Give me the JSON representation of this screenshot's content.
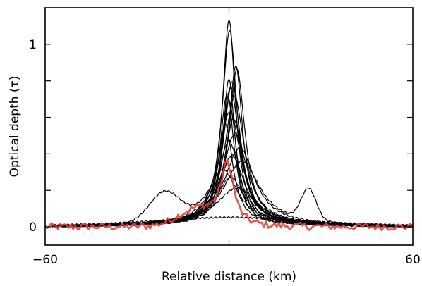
{
  "chart_data": {
    "type": "line",
    "title": "",
    "xlabel": "Relative distance (km)",
    "ylabel": "Optical depth (τ)",
    "xlim": [
      -60,
      60
    ],
    "ylim": [
      -0.1,
      1.2
    ],
    "x_tick_labels": [
      {
        "value": -60,
        "label": "−60"
      },
      {
        "value": 60,
        "label": "60"
      }
    ],
    "y_tick_labels": [
      {
        "value": 0,
        "label": "0"
      },
      {
        "value": 1,
        "label": "1"
      }
    ],
    "y_minor_ticks": [
      0.2,
      0.4,
      0.6,
      0.8
    ],
    "x_minor_ticks": [
      0
    ],
    "grid": false,
    "legend": "none",
    "colors": {
      "profiles": "#000000",
      "highlight": "#e8403a"
    },
    "profiles": [
      {
        "peak": 1.12,
        "offset": 0.0,
        "width": 2.6,
        "bump": null
      },
      {
        "peak": 1.06,
        "offset": 0.2,
        "width": 3.0,
        "bump": null
      },
      {
        "peak": 0.87,
        "offset": 2.2,
        "width": 2.8,
        "bump": null
      },
      {
        "peak": 0.85,
        "offset": 2.6,
        "width": 3.2,
        "bump": null
      },
      {
        "peak": 0.8,
        "offset": 0.0,
        "width": 2.4,
        "bump": null
      },
      {
        "peak": 0.78,
        "offset": 1.0,
        "width": 3.4,
        "bump": null
      },
      {
        "peak": 0.75,
        "offset": 0.5,
        "width": 3.6,
        "bump": null
      },
      {
        "peak": 0.72,
        "offset": -0.6,
        "width": 2.8,
        "bump": null
      },
      {
        "peak": 0.7,
        "offset": 1.8,
        "width": 4.0,
        "bump": null
      },
      {
        "peak": 0.68,
        "offset": 0.0,
        "width": 3.0,
        "bump": null
      },
      {
        "peak": 0.62,
        "offset": 0.3,
        "width": 4.4,
        "bump": null
      },
      {
        "peak": 0.58,
        "offset": 1.5,
        "width": 3.8,
        "bump": null
      },
      {
        "peak": 0.55,
        "offset": -1.2,
        "width": 3.0,
        "bump": null
      },
      {
        "peak": 0.5,
        "offset": 2.0,
        "width": 5.0,
        "bump": null
      },
      {
        "peak": 0.46,
        "offset": 0.0,
        "width": 4.2,
        "bump": null
      },
      {
        "peak": 0.42,
        "offset": 3.5,
        "width": 6.0,
        "bump": null
      },
      {
        "peak": 0.38,
        "offset": 1.0,
        "width": 5.0,
        "bump": null
      },
      {
        "peak": 0.35,
        "offset": 4.2,
        "width": 7.0,
        "bump": {
          "center": 26.0,
          "height": 0.17,
          "width": 3.5
        }
      },
      {
        "peak": 0.3,
        "offset": -2.0,
        "width": 6.0,
        "bump": {
          "center": -21.0,
          "height": 0.16,
          "width": 7.0
        }
      },
      {
        "peak": 0.26,
        "offset": 0.5,
        "width": 5.5,
        "bump": null
      },
      {
        "peak": 0.2,
        "offset": 2.5,
        "width": 8.0,
        "bump": null
      },
      {
        "peak": 0.04,
        "offset": 0.0,
        "width": 30.0,
        "bump": null
      }
    ],
    "highlight_profile": {
      "peak": 0.33,
      "offset": -0.5,
      "width": 2.5,
      "baseline_noise": 0.02
    }
  }
}
